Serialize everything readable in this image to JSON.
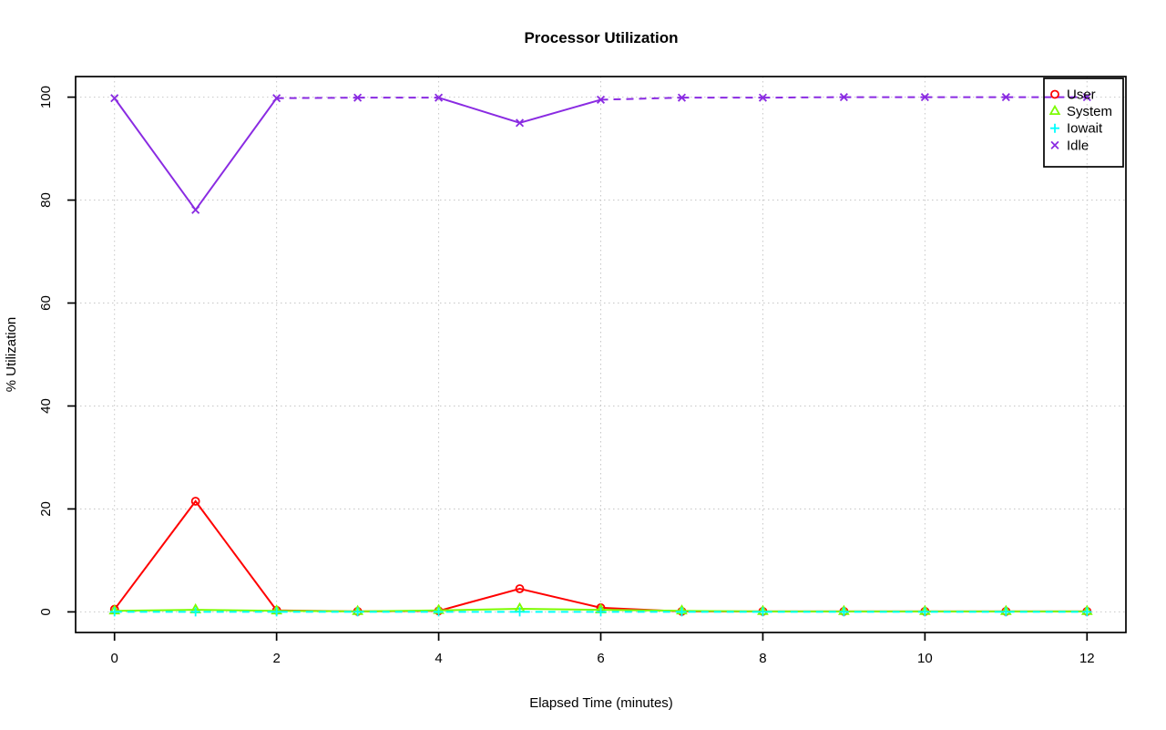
{
  "page": {
    "background": "#ffffff"
  },
  "chart_data": {
    "type": "line",
    "title": "Processor Utilization",
    "xlabel": "Elapsed Time (minutes)",
    "ylabel": "% Utilization",
    "x": [
      0,
      1,
      2,
      3,
      4,
      5,
      6,
      7,
      8,
      9,
      10,
      11,
      12
    ],
    "series": [
      {
        "name": "User",
        "color": "#ff0000",
        "marker": "circle",
        "linestyle": "solid",
        "values": [
          0.5,
          21.5,
          0.3,
          0.1,
          0.2,
          4.5,
          0.8,
          0.1,
          0.1,
          0.1,
          0.1,
          0.1,
          0.1
        ]
      },
      {
        "name": "System",
        "color": "#7cfc00",
        "marker": "triangle",
        "linestyle": "solid",
        "values": [
          0.2,
          0.4,
          0.2,
          0.1,
          0.3,
          0.6,
          0.4,
          0.2,
          0.1,
          0.1,
          0.1,
          0.1,
          0.1
        ]
      },
      {
        "name": "Iowait",
        "color": "#00ffff",
        "marker": "plus",
        "linestyle": "dashed",
        "values": [
          0,
          0,
          0,
          0,
          0,
          0,
          0,
          0,
          0,
          0,
          0,
          0,
          0
        ]
      },
      {
        "name": "Idle",
        "color": "#8a2be2",
        "marker": "x",
        "linestyle": "dashed-when-flat",
        "values": [
          99.8,
          78.1,
          99.8,
          99.9,
          99.9,
          95.0,
          99.5,
          99.9,
          99.9,
          100,
          100,
          100,
          100
        ]
      }
    ],
    "xlim": [
      0,
      12
    ],
    "ylim": [
      0,
      100
    ],
    "x_ticks": [
      0,
      2,
      4,
      6,
      8,
      10,
      12
    ],
    "y_ticks": [
      0,
      20,
      40,
      60,
      80,
      100
    ],
    "grid": true,
    "grid_color": "#c6c6c6",
    "axis_color": "#000000",
    "legend_position": "topright",
    "legend_entries": [
      "User",
      "System",
      "Iowait",
      "Idle"
    ]
  }
}
